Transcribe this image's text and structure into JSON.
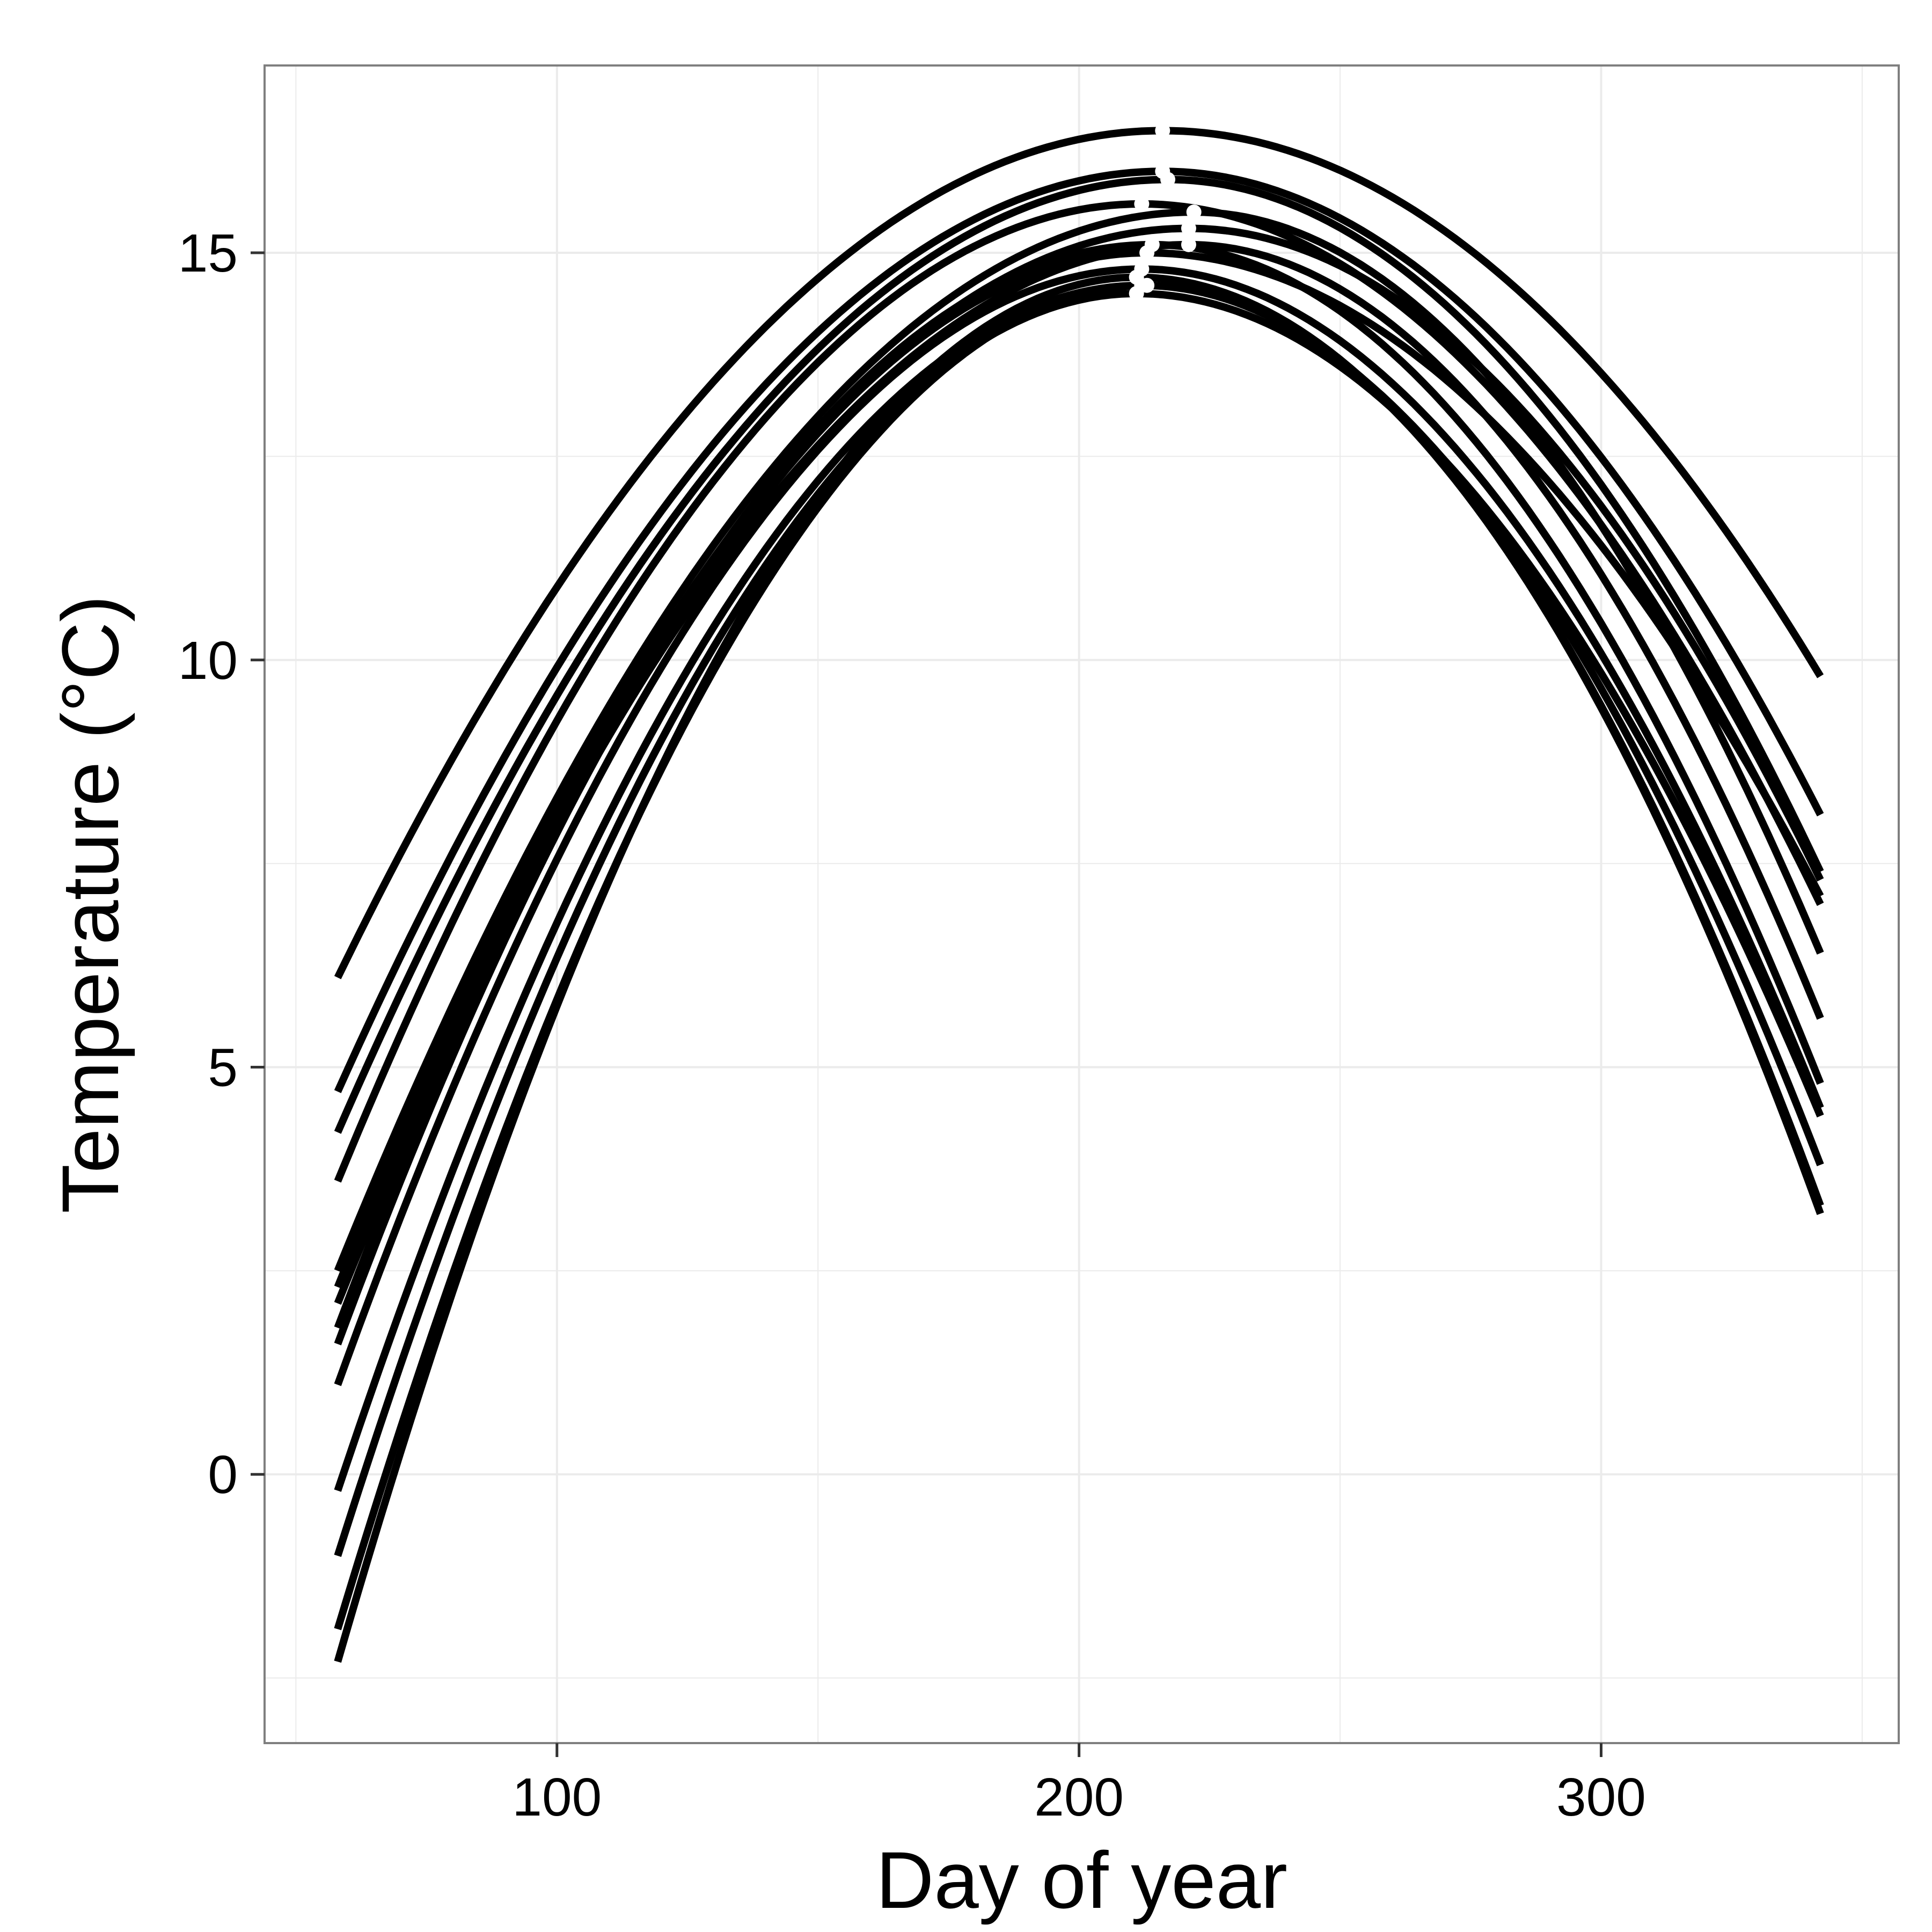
{
  "chart_data": {
    "type": "line",
    "title": "",
    "xlabel": "Day of year",
    "ylabel": "Temperature (°C)",
    "xlim": [
      44,
      357
    ],
    "ylim": [
      -3.3,
      17.3
    ],
    "xticks": [
      100,
      200,
      300
    ],
    "yticks": [
      0,
      5,
      10,
      15
    ],
    "grid": true,
    "legend": "none",
    "colors": {
      "line": "#000000",
      "peak_marker": "#ffffff",
      "grid": "#ebebeb",
      "panel_border": "#7f7f7f"
    },
    "x_range_of_curves": [
      58,
      342
    ],
    "series": [
      {
        "start": 6.1,
        "peak_day": 216,
        "peak": 16.5,
        "end": 9.8
      },
      {
        "start": 4.7,
        "peak_day": 216,
        "peak": 16.0,
        "end": 8.1
      },
      {
        "start": 4.2,
        "peak_day": 217,
        "peak": 15.9,
        "end": 7.4
      },
      {
        "start": 3.6,
        "peak_day": 212,
        "peak": 15.6,
        "end": 7.0
      },
      {
        "start": 2.5,
        "peak_day": 222,
        "peak": 15.5,
        "end": 6.4
      },
      {
        "start": 2.3,
        "peak_day": 221,
        "peak": 15.3,
        "end": 7.3
      },
      {
        "start": 2.1,
        "peak_day": 221,
        "peak": 15.1,
        "end": 5.6
      },
      {
        "start": 1.8,
        "peak_day": 214,
        "peak": 15.1,
        "end": 4.8
      },
      {
        "start": 1.6,
        "peak_day": 213,
        "peak": 15.0,
        "end": 7.1
      },
      {
        "start": 1.1,
        "peak_day": 212,
        "peak": 14.8,
        "end": 4.5
      },
      {
        "start": -0.2,
        "peak_day": 212,
        "peak": 14.6,
        "end": 3.8
      },
      {
        "start": -1.0,
        "peak_day": 211,
        "peak": 14.5,
        "end": 4.4
      },
      {
        "start": -1.9,
        "peak_day": 213,
        "peak": 14.6,
        "end": 3.2
      },
      {
        "start": -2.3,
        "peak_day": 211,
        "peak": 14.7,
        "end": 3.3
      }
    ]
  }
}
